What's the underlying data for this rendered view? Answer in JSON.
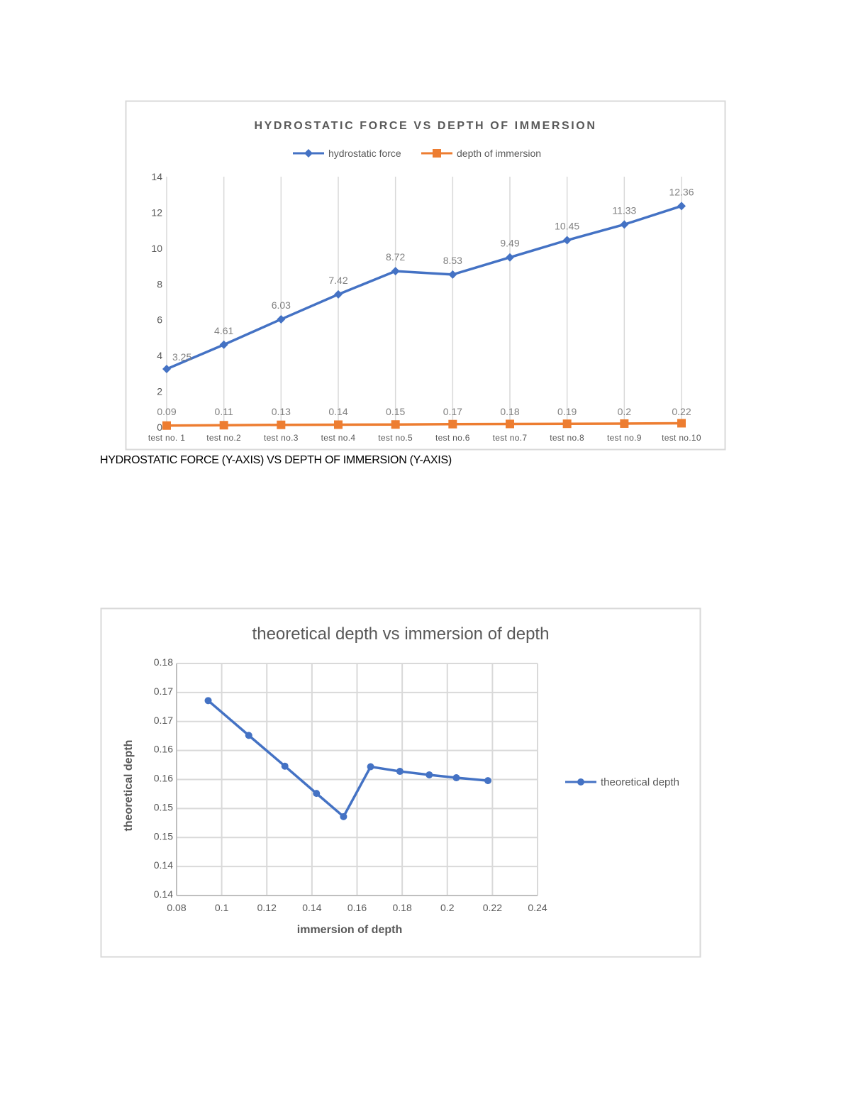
{
  "caption": "HYDROSTATIC FORCE (Y-AXIS) VS DEPTH OF IMMERSION (Y-AXIS)",
  "chart_data": [
    {
      "type": "line",
      "title": "HYDROSTATIC FORCE VS DEPTH OF IMMERSION",
      "categories": [
        "test no. 1",
        "test no.2",
        "test no.3",
        "test no.4",
        "test no.5",
        "test no.6",
        "test no.7",
        "test no.8",
        "test no.9",
        "test no.10"
      ],
      "series": [
        {
          "name": "hydrostatic force",
          "color": "#4472C4",
          "marker": "diamond",
          "values": [
            3.25,
            4.61,
            6.03,
            7.42,
            8.72,
            8.53,
            9.49,
            10.45,
            11.33,
            12.36
          ],
          "labels": [
            "3.25",
            "4.61",
            "6.03",
            "7.42",
            "8.72",
            "8.53",
            "9.49",
            "10.45",
            "11.33",
            "12.36"
          ]
        },
        {
          "name": "depth of immersion",
          "color": "#ED7D31",
          "marker": "square",
          "values": [
            0.09,
            0.11,
            0.13,
            0.14,
            0.15,
            0.17,
            0.18,
            0.19,
            0.2,
            0.22
          ],
          "labels": [
            "0.09",
            "0.11",
            "0.13",
            "0.14",
            "0.15",
            "0.17",
            "0.18",
            "0.19",
            "0.2",
            "0.22"
          ]
        }
      ],
      "ylim": [
        0,
        14
      ],
      "yticks": [
        "0",
        "2",
        "4",
        "6",
        "8",
        "10",
        "12",
        "14"
      ],
      "grid": "vertical",
      "legend": "top"
    },
    {
      "type": "line",
      "title": "theoretical depth vs immersion of depth",
      "xlabel": "immersion of depth",
      "ylabel": "theoretical depth",
      "xlim": [
        0.08,
        0.24
      ],
      "ylim": [
        0.14,
        0.18
      ],
      "xticks": [
        "0.08",
        "0.1",
        "0.12",
        "0.14",
        "0.16",
        "0.18",
        "0.2",
        "0.22",
        "0.24"
      ],
      "yticks": [
        "0.14",
        "0.14",
        "0.15",
        "0.15",
        "0.16",
        "0.16",
        "0.17",
        "0.17",
        "0.18"
      ],
      "series": [
        {
          "name": "theoretical depth",
          "color": "#4472C4",
          "marker": "circle",
          "x": [
            0.094,
            0.112,
            0.128,
            0.142,
            0.154,
            0.166,
            0.179,
            0.192,
            0.204,
            0.218
          ],
          "y": [
            0.1736,
            0.1676,
            0.1623,
            0.1576,
            0.1536,
            0.1622,
            0.1614,
            0.1608,
            0.1603,
            0.1598
          ]
        }
      ],
      "grid": "both",
      "legend": "right"
    }
  ]
}
